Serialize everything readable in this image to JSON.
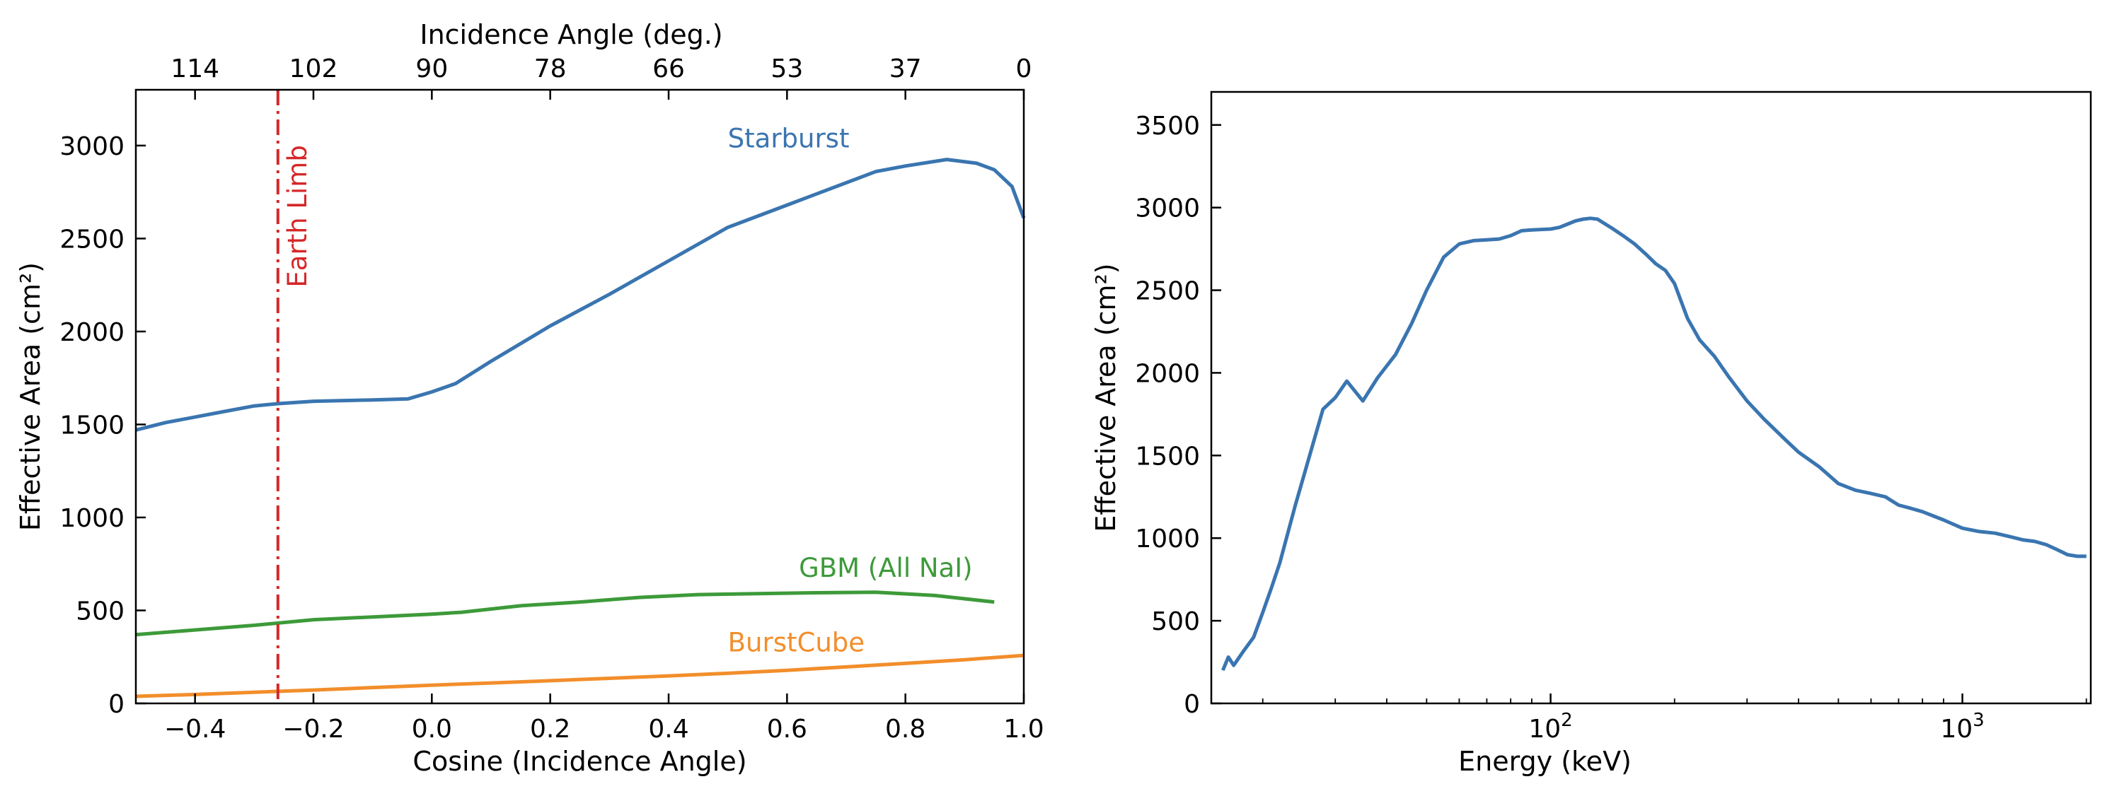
{
  "chart_data": [
    {
      "type": "line",
      "xlabel": "Cosine (Incidence Angle)",
      "ylabel": "Effective Area (cm²)",
      "secondary_xlabel": "Incidence Angle (deg.)",
      "xlim": [
        -0.5,
        1.0
      ],
      "ylim": [
        0,
        3300
      ],
      "xticks": [
        -0.4,
        -0.2,
        0.0,
        0.2,
        0.4,
        0.6,
        0.8,
        1.0
      ],
      "xtick_labels": [
        "−0.4",
        "−0.2",
        "0.0",
        "0.2",
        "0.4",
        "0.6",
        "0.8",
        "1.0"
      ],
      "yticks": [
        0,
        500,
        1000,
        1500,
        2000,
        2500,
        3000
      ],
      "ytick_labels": [
        "0",
        "500",
        "1000",
        "1500",
        "2000",
        "2500",
        "3000"
      ],
      "top_ticks": [
        {
          "x": -0.4,
          "label": "114"
        },
        {
          "x": -0.2,
          "label": "102"
        },
        {
          "x": 0.0,
          "label": "90"
        },
        {
          "x": 0.2,
          "label": "78"
        },
        {
          "x": 0.4,
          "label": "66"
        },
        {
          "x": 0.6,
          "label": "53"
        },
        {
          "x": 0.8,
          "label": "37"
        },
        {
          "x": 1.0,
          "label": "0"
        }
      ],
      "vline": {
        "x": -0.26,
        "label": "Earth Limb",
        "color": "#d62728"
      },
      "series": [
        {
          "name": "Starburst",
          "color": "#3a75b0",
          "x": [
            -0.5,
            -0.45,
            -0.4,
            -0.35,
            -0.3,
            -0.26,
            -0.2,
            -0.1,
            -0.04,
            0.0,
            0.04,
            0.1,
            0.2,
            0.3,
            0.4,
            0.5,
            0.6,
            0.7,
            0.75,
            0.8,
            0.87,
            0.92,
            0.95,
            0.98,
            1.0
          ],
          "y": [
            1470,
            1510,
            1540,
            1570,
            1600,
            1612,
            1625,
            1632,
            1638,
            1675,
            1720,
            1840,
            2030,
            2200,
            2380,
            2560,
            2680,
            2800,
            2860,
            2890,
            2925,
            2905,
            2870,
            2780,
            2610
          ]
        },
        {
          "name": "GBM (All NaI)",
          "color": "#3d9a3a",
          "x": [
            -0.5,
            -0.4,
            -0.3,
            -0.2,
            -0.1,
            0.0,
            0.05,
            0.15,
            0.25,
            0.35,
            0.45,
            0.55,
            0.65,
            0.75,
            0.85,
            0.95
          ],
          "y": [
            370,
            395,
            420,
            450,
            465,
            480,
            490,
            525,
            545,
            570,
            585,
            590,
            595,
            598,
            580,
            545
          ]
        },
        {
          "name": "BurstCube",
          "color": "#f28e2b",
          "x": [
            -0.5,
            -0.4,
            -0.3,
            -0.2,
            -0.1,
            0.0,
            0.1,
            0.2,
            0.3,
            0.4,
            0.5,
            0.6,
            0.7,
            0.8,
            0.9,
            1.0
          ],
          "y": [
            38,
            48,
            60,
            72,
            85,
            98,
            110,
            122,
            135,
            148,
            162,
            178,
            196,
            215,
            235,
            258
          ]
        }
      ],
      "series_labels": [
        {
          "text": "Starburst",
          "color": "#3a75b0",
          "x": 0.5,
          "y": 2990
        },
        {
          "text": "GBM (All NaI)",
          "color": "#3d9a3a",
          "x": 0.62,
          "y": 680
        },
        {
          "text": "BurstCube",
          "color": "#f28e2b",
          "x": 0.5,
          "y": 280
        }
      ]
    },
    {
      "type": "line",
      "xlabel": "Energy (keV)",
      "ylabel": "Effective Area (cm²)",
      "xscale": "log",
      "xlim": [
        15,
        2050
      ],
      "ylim": [
        0,
        3700
      ],
      "xticks": [
        100,
        1000
      ],
      "xtick_labels": [
        "10",
        "10"
      ],
      "xtick_exponents": [
        "2",
        "3"
      ],
      "yticks": [
        0,
        500,
        1000,
        1500,
        2000,
        2500,
        3000,
        3500
      ],
      "ytick_labels": [
        "0",
        "500",
        "1000",
        "1500",
        "2000",
        "2500",
        "3000",
        "3500"
      ],
      "series": [
        {
          "name": "",
          "color": "#3a75b0",
          "x": [
            16,
            16.5,
            17,
            18,
            19,
            20,
            21,
            22,
            24,
            26,
            28,
            30,
            32,
            35,
            38,
            42,
            46,
            50,
            55,
            60,
            65,
            70,
            75,
            80,
            85,
            90,
            100,
            105,
            110,
            115,
            120,
            125,
            130,
            140,
            150,
            160,
            170,
            180,
            190,
            200,
            215,
            230,
            250,
            270,
            300,
            330,
            370,
            400,
            450,
            500,
            550,
            600,
            650,
            700,
            750,
            800,
            900,
            1000,
            1100,
            1200,
            1300,
            1400,
            1500,
            1600,
            1700,
            1800,
            1900,
            2000
          ],
          "y": [
            200,
            280,
            230,
            320,
            400,
            550,
            700,
            850,
            1200,
            1500,
            1780,
            1850,
            1950,
            1830,
            1970,
            2110,
            2300,
            2500,
            2700,
            2780,
            2800,
            2805,
            2810,
            2830,
            2860,
            2865,
            2870,
            2880,
            2900,
            2920,
            2930,
            2935,
            2930,
            2880,
            2830,
            2780,
            2720,
            2660,
            2620,
            2540,
            2330,
            2200,
            2100,
            1980,
            1830,
            1720,
            1600,
            1520,
            1430,
            1330,
            1290,
            1270,
            1250,
            1200,
            1180,
            1160,
            1110,
            1060,
            1040,
            1030,
            1010,
            990,
            980,
            960,
            930,
            900,
            890,
            890
          ]
        }
      ]
    }
  ]
}
